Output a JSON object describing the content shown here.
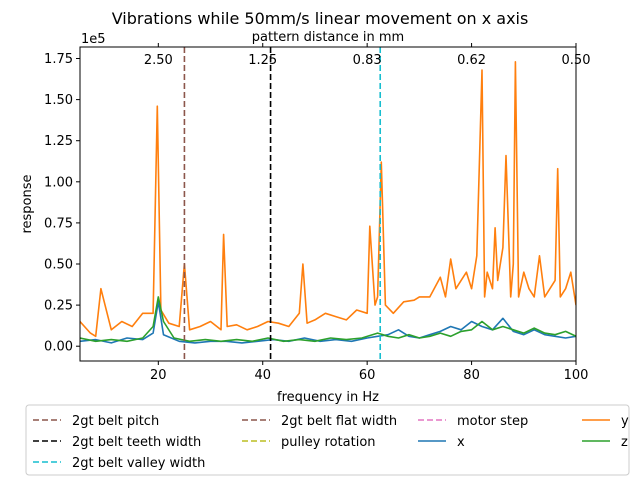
{
  "chart_data": {
    "type": "line",
    "title": "Vibrations while 50mm/s linear movement on x axis",
    "xlabel": "frequency in Hz",
    "ylabel": "response",
    "top_axis_label": "pattern distance in mm",
    "offset_label": "1e5",
    "xlim": [
      5,
      100
    ],
    "ylim": [
      -0.09,
      1.82
    ],
    "x_ticks": [
      20,
      40,
      60,
      80,
      100
    ],
    "x_tick_labels": [
      "20",
      "40",
      "60",
      "80",
      "100"
    ],
    "y_ticks": [
      0,
      0.25,
      0.5,
      0.75,
      1.0,
      1.25,
      1.5,
      1.75
    ],
    "y_tick_labels": [
      "0.00",
      "0.25",
      "0.50",
      "0.75",
      "1.00",
      "1.25",
      "1.50",
      "1.75"
    ],
    "top_ticks": [
      {
        "x": 20,
        "label": "2.50"
      },
      {
        "x": 40,
        "label": "1.25"
      },
      {
        "x": 60,
        "label": "0.83"
      },
      {
        "x": 80,
        "label": "0.62"
      },
      {
        "x": 100,
        "label": "0.50"
      }
    ],
    "markers": [
      {
        "name": "2gt belt pitch",
        "x": 25.0,
        "color": "#8c564b"
      },
      {
        "name": "2gt belt teeth width",
        "x": 41.5,
        "color": "#000000"
      },
      {
        "name": "2gt belt valley width",
        "x": 62.5,
        "color": "#17becf"
      }
    ],
    "series": [
      {
        "name": "x",
        "color": "#1f77b4",
        "x": [
          5,
          8,
          11,
          14,
          17,
          19,
          20,
          21,
          24,
          27,
          30,
          33,
          36,
          39,
          42,
          45,
          48,
          51,
          54,
          57,
          60,
          62,
          64,
          66,
          68,
          70,
          72,
          74,
          76,
          78,
          80,
          82,
          84,
          86,
          88,
          90,
          92,
          94,
          96,
          98,
          100
        ],
        "values": [
          0.03,
          0.04,
          0.02,
          0.05,
          0.04,
          0.08,
          0.27,
          0.07,
          0.03,
          0.02,
          0.03,
          0.03,
          0.02,
          0.03,
          0.04,
          0.03,
          0.05,
          0.03,
          0.04,
          0.03,
          0.05,
          0.06,
          0.07,
          0.1,
          0.06,
          0.05,
          0.07,
          0.09,
          0.12,
          0.1,
          0.15,
          0.12,
          0.1,
          0.17,
          0.09,
          0.07,
          0.1,
          0.07,
          0.06,
          0.05,
          0.06
        ]
      },
      {
        "name": "y",
        "color": "#ff7f0e",
        "x": [
          5,
          7,
          8,
          9,
          11,
          13,
          15,
          17,
          19,
          19.8,
          20.5,
          22,
          24,
          25,
          26,
          28,
          30,
          32,
          32.5,
          33.2,
          35,
          37,
          39,
          41,
          43,
          45,
          47,
          47.7,
          48.5,
          50,
          52,
          54,
          56,
          58,
          60,
          60.5,
          61.5,
          62,
          62.7,
          63.5,
          65,
          67,
          69,
          70,
          72,
          74,
          75,
          76,
          77,
          78,
          79,
          80,
          81,
          82,
          82.5,
          83,
          84,
          84.5,
          85,
          86,
          86.6,
          87.5,
          88,
          88.4,
          89,
          90,
          91,
          92,
          93,
          94,
          95,
          96,
          96.5,
          97,
          98,
          99,
          100
        ],
        "values": [
          0.15,
          0.08,
          0.06,
          0.35,
          0.1,
          0.15,
          0.12,
          0.2,
          0.2,
          1.46,
          0.22,
          0.14,
          0.12,
          0.5,
          0.1,
          0.12,
          0.15,
          0.1,
          0.68,
          0.12,
          0.13,
          0.1,
          0.12,
          0.15,
          0.14,
          0.12,
          0.2,
          0.5,
          0.14,
          0.16,
          0.2,
          0.18,
          0.16,
          0.22,
          0.2,
          0.73,
          0.25,
          0.3,
          1.12,
          0.25,
          0.2,
          0.27,
          0.28,
          0.3,
          0.3,
          0.42,
          0.3,
          0.53,
          0.35,
          0.4,
          0.45,
          0.35,
          0.55,
          1.68,
          0.3,
          0.45,
          0.35,
          0.72,
          0.4,
          0.6,
          1.16,
          0.3,
          0.5,
          1.73,
          0.3,
          0.45,
          0.35,
          0.3,
          0.55,
          0.3,
          0.35,
          0.4,
          1.08,
          0.3,
          0.35,
          0.45,
          0.25
        ]
      },
      {
        "name": "z",
        "color": "#2ca02c",
        "x": [
          5,
          8,
          11,
          14,
          17,
          19,
          20,
          21,
          23,
          26,
          29,
          32,
          35,
          38,
          41,
          44,
          47,
          50,
          53,
          56,
          59,
          62,
          64,
          66,
          68,
          70,
          72,
          74,
          76,
          78,
          80,
          82,
          84,
          86,
          88,
          90,
          92,
          94,
          96,
          98,
          100
        ],
        "values": [
          0.05,
          0.03,
          0.04,
          0.03,
          0.05,
          0.12,
          0.3,
          0.15,
          0.05,
          0.03,
          0.04,
          0.03,
          0.04,
          0.03,
          0.05,
          0.03,
          0.04,
          0.03,
          0.05,
          0.04,
          0.05,
          0.08,
          0.06,
          0.05,
          0.07,
          0.05,
          0.06,
          0.08,
          0.06,
          0.09,
          0.1,
          0.15,
          0.1,
          0.12,
          0.1,
          0.08,
          0.11,
          0.08,
          0.07,
          0.09,
          0.06
        ]
      }
    ],
    "legend": {
      "placement": "bottom",
      "entries": [
        {
          "label": "2gt belt pitch",
          "color": "#8c564b",
          "style": "dashed"
        },
        {
          "label": "2gt belt flat width",
          "color": "#8c564b",
          "style": "dashed"
        },
        {
          "label": "motor step",
          "color": "#e377c2",
          "style": "dashed"
        },
        {
          "label": "y",
          "color": "#ff7f0e",
          "style": "solid"
        },
        {
          "label": "2gt belt teeth width",
          "color": "#000000",
          "style": "dashed"
        },
        {
          "label": "pulley rotation",
          "color": "#bcbd22",
          "style": "dashed"
        },
        {
          "label": "x",
          "color": "#1f77b4",
          "style": "solid"
        },
        {
          "label": "z",
          "color": "#2ca02c",
          "style": "solid"
        },
        {
          "label": "2gt belt valley width",
          "color": "#17becf",
          "style": "dashed"
        }
      ]
    }
  }
}
